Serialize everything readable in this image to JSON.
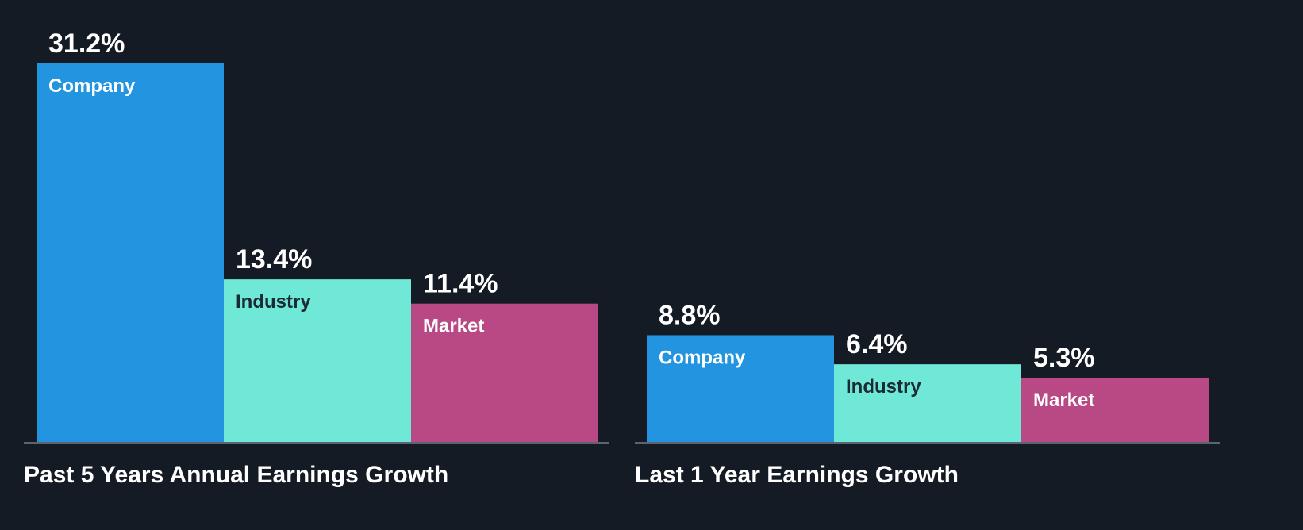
{
  "chart_data": [
    {
      "type": "bar",
      "title": "Past 5 Years Annual Earnings Growth",
      "categories": [
        "Company",
        "Industry",
        "Market"
      ],
      "values": [
        31.2,
        13.4,
        11.4
      ],
      "value_labels": [
        "31.2%",
        "13.4%",
        "11.4%"
      ],
      "colors": [
        "#2394df",
        "#6fe8d7",
        "#b94984"
      ],
      "label_colors": [
        "#ffffff",
        "#1b2a33",
        "#ffffff"
      ],
      "ylim": [
        0,
        31.2
      ],
      "grid": false,
      "legend": "none"
    },
    {
      "type": "bar",
      "title": "Last 1 Year Earnings Growth",
      "categories": [
        "Company",
        "Industry",
        "Market"
      ],
      "values": [
        8.8,
        6.4,
        5.3
      ],
      "value_labels": [
        "8.8%",
        "6.4%",
        "5.3%"
      ],
      "colors": [
        "#2394df",
        "#6fe8d7",
        "#b94984"
      ],
      "label_colors": [
        "#ffffff",
        "#1b2a33",
        "#ffffff"
      ],
      "ylim": [
        0,
        31.2
      ],
      "grid": false,
      "legend": "none"
    }
  ]
}
